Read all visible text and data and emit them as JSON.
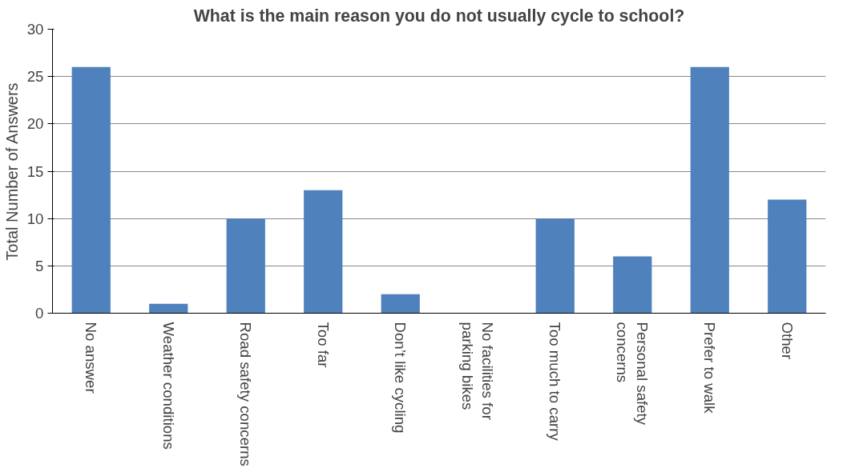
{
  "chart_data": {
    "type": "bar",
    "title": "What is the main reason you do not usually cycle to school?",
    "ylabel": "Total Number of Answers",
    "categories": [
      "No answer",
      "Weather conditions",
      "Road safety concerns",
      "Too far",
      "Don’t like cycling",
      "No facilities for\nparking bikes",
      "Too much to carry",
      "Personal safety\nconcerns",
      "Prefer to walk",
      "Other"
    ],
    "values": [
      26,
      1,
      10,
      13,
      2,
      0,
      10,
      6,
      26,
      12
    ],
    "color": "#4f81bd",
    "ylim": [
      0,
      30
    ],
    "yticks": [
      0,
      5,
      10,
      15,
      20,
      25,
      30
    ],
    "grid": "y"
  }
}
